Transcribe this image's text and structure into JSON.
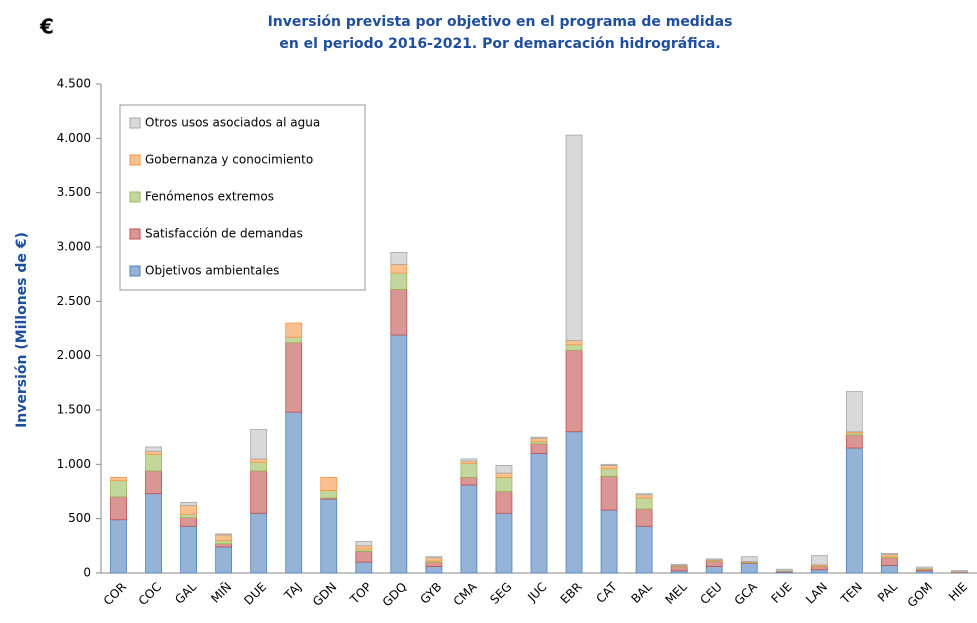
{
  "chart_data": {
    "type": "stacked_bar",
    "symbol": "€",
    "title": [
      "Inversión prevista por objetivo en el programa de medidas",
      "en el periodo 2016-2021. Por demarcación hidrográfica."
    ],
    "y_label": "Inversión (Millones de €)",
    "categories": [
      "COR",
      "COC",
      "GAL",
      "MIÑ",
      "DUE",
      "TAJ",
      "GDN",
      "TOP",
      "GDQ",
      "GYB",
      "CMA",
      "SEG",
      "JUC",
      "EBR",
      "CAT",
      "BAL",
      "MEL",
      "CEU",
      "GCA",
      "FUE",
      "LAN",
      "TEN",
      "PAL",
      "GOM",
      "HIE"
    ],
    "series": [
      {
        "name": "Objetivos ambientales",
        "color": "#95b3d7",
        "stroke": "#4f81bd",
        "values": [
          490,
          730,
          430,
          240,
          550,
          1480,
          680,
          100,
          2190,
          60,
          810,
          550,
          1100,
          1300,
          580,
          430,
          20,
          60,
          90,
          10,
          30,
          1150,
          70,
          20,
          5
        ]
      },
      {
        "name": "Satisfacción de demandas",
        "color": "#d99694",
        "stroke": "#c0504d",
        "values": [
          210,
          210,
          80,
          30,
          390,
          640,
          10,
          100,
          420,
          40,
          70,
          200,
          90,
          750,
          310,
          160,
          40,
          50,
          5,
          5,
          30,
          120,
          70,
          10,
          3
        ]
      },
      {
        "name": "Fenómenos extremos",
        "color": "#c3d69b",
        "stroke": "#9bbb59",
        "values": [
          150,
          150,
          30,
          30,
          80,
          50,
          70,
          20,
          150,
          10,
          130,
          130,
          20,
          50,
          70,
          100,
          5,
          5,
          5,
          2,
          5,
          20,
          10,
          5,
          2
        ]
      },
      {
        "name": "Gobernanza y conocimiento",
        "color": "#fac090",
        "stroke": "#f79646",
        "values": [
          30,
          30,
          80,
          50,
          30,
          130,
          120,
          30,
          80,
          30,
          20,
          40,
          30,
          40,
          30,
          30,
          5,
          5,
          5,
          3,
          10,
          10,
          20,
          5,
          2
        ]
      },
      {
        "name": "Otros usos asociados al agua",
        "color": "#d9d9d9",
        "stroke": "#a6a6a6",
        "values": [
          0,
          40,
          30,
          10,
          270,
          0,
          0,
          40,
          110,
          10,
          20,
          70,
          10,
          1890,
          10,
          10,
          10,
          10,
          45,
          15,
          85,
          370,
          10,
          15,
          10
        ]
      }
    ],
    "ylim": [
      0,
      4500
    ],
    "yticks": [
      0,
      500,
      {
        "value": 1000,
        "label": "1.000"
      },
      {
        "value": 1500,
        "label": "1.500"
      },
      {
        "value": 2000,
        "label": "2.000"
      },
      {
        "value": 2500,
        "label": "2.500"
      },
      {
        "value": 3000,
        "label": "3.000"
      },
      {
        "value": 3500,
        "label": "3.500"
      },
      {
        "value": 4000,
        "label": "4.000"
      },
      {
        "value": 4500,
        "label": "4.500"
      }
    ],
    "legend": "upper left"
  }
}
